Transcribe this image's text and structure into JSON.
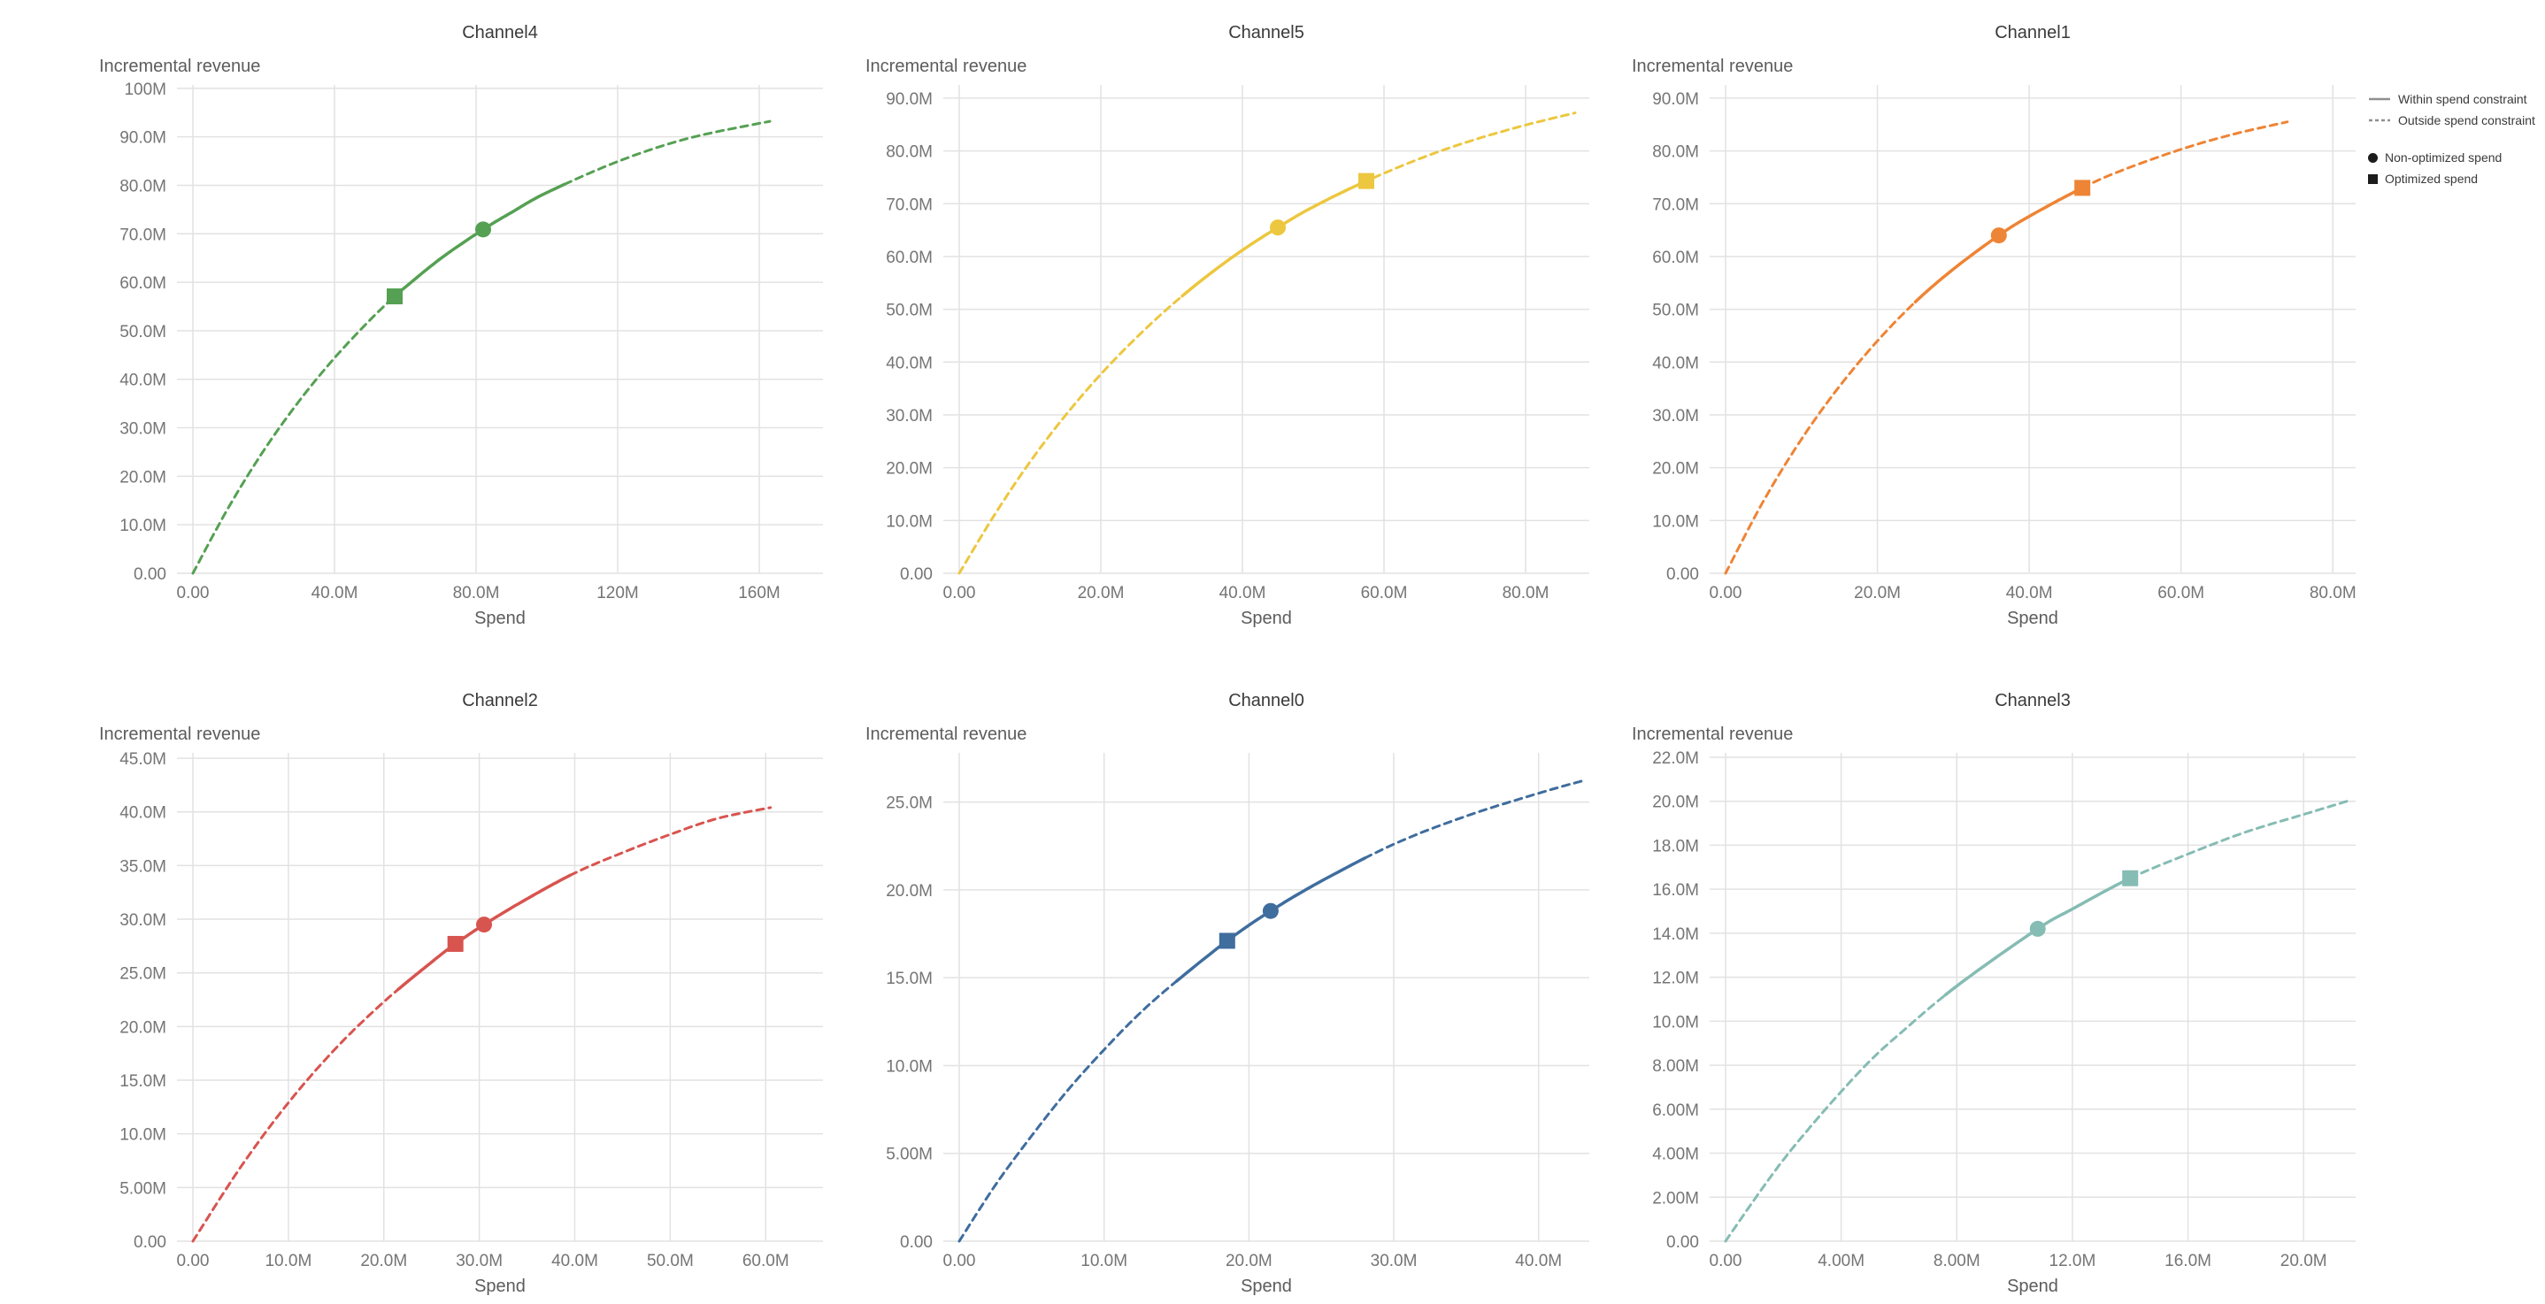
{
  "legend": {
    "items": [
      {
        "label": "Within spend constraint",
        "symbol": "solid-line"
      },
      {
        "label": "Outside spend constraint",
        "symbol": "dashed-line"
      },
      {
        "label": "Non-optimized spend",
        "symbol": "circle"
      },
      {
        "label": "Optimized spend",
        "symbol": "square"
      }
    ],
    "line_color": "#8f8f8f",
    "marker_color": "#1c1c1c"
  },
  "chart_data": [
    {
      "type": "line",
      "title": "Channel4",
      "xlabel": "Spend",
      "ylabel": "Incremental revenue",
      "color": "#55a053",
      "values_in": "millions",
      "xlim": [
        0,
        178
      ],
      "ylim": [
        0,
        100.7
      ],
      "x_ticks": {
        "values": [
          0,
          40,
          80,
          120,
          160
        ],
        "labels": [
          "0.00",
          "40.0M",
          "80.0M",
          "120M",
          "160M"
        ]
      },
      "y_ticks": {
        "values": [
          0,
          10,
          20,
          30,
          40,
          50,
          60,
          70,
          80,
          90,
          100
        ],
        "labels": [
          "0.00",
          "10.0M",
          "20.0M",
          "30.0M",
          "40.0M",
          "50.0M",
          "60.0M",
          "70.0M",
          "80.0M",
          "90.0M",
          "100M"
        ]
      },
      "curve_points": [
        [
          0,
          0
        ],
        [
          10,
          13.5
        ],
        [
          20,
          25.3
        ],
        [
          30,
          35.5
        ],
        [
          40,
          44.4
        ],
        [
          50,
          52.2
        ],
        [
          57,
          57.1
        ],
        [
          60,
          59.0
        ],
        [
          70,
          64.9
        ],
        [
          82,
          70.9
        ],
        [
          90,
          74.4
        ],
        [
          100,
          78.5
        ],
        [
          120,
          84.9
        ],
        [
          140,
          89.7
        ],
        [
          163,
          93.2
        ]
      ],
      "solid_range": [
        55,
        105
      ],
      "markers": {
        "non_optimized_spend": [
          82,
          70.9
        ],
        "optimized_spend": [
          57,
          57.1
        ]
      }
    },
    {
      "type": "line",
      "title": "Channel5",
      "xlabel": "Spend",
      "ylabel": "Incremental revenue",
      "color": "#ecc73f",
      "values_in": "millions",
      "xlim": [
        0,
        89
      ],
      "ylim": [
        0,
        92.5
      ],
      "x_ticks": {
        "values": [
          0,
          20,
          40,
          60,
          80
        ],
        "labels": [
          "0.00",
          "20.0M",
          "40.0M",
          "60.0M",
          "80.0M"
        ]
      },
      "y_ticks": {
        "values": [
          0,
          10,
          20,
          30,
          40,
          50,
          60,
          70,
          80,
          90
        ],
        "labels": [
          "0.00",
          "10.0M",
          "20.0M",
          "30.0M",
          "40.0M",
          "50.0M",
          "60.0M",
          "70.0M",
          "80.0M",
          "90.0M"
        ]
      },
      "curve_points": [
        [
          0,
          0
        ],
        [
          5,
          11.1
        ],
        [
          10,
          21.1
        ],
        [
          15,
          29.9
        ],
        [
          20,
          37.7
        ],
        [
          25,
          44.6
        ],
        [
          30,
          50.8
        ],
        [
          35,
          56.3
        ],
        [
          40,
          61.2
        ],
        [
          45,
          65.5
        ],
        [
          50,
          69.4
        ],
        [
          57.5,
          74.3
        ],
        [
          65,
          78.5
        ],
        [
          72,
          81.8
        ],
        [
          80,
          84.9
        ],
        [
          87,
          87.2
        ]
      ],
      "solid_range": [
        31.5,
        58.5
      ],
      "markers": {
        "non_optimized_spend": [
          45,
          65.5
        ],
        "optimized_spend": [
          57.5,
          74.3
        ]
      }
    },
    {
      "type": "line",
      "title": "Channel1",
      "xlabel": "Spend",
      "ylabel": "Incremental revenue",
      "color": "#ee8435",
      "values_in": "millions",
      "xlim": [
        0,
        83
      ],
      "ylim": [
        0,
        92.5
      ],
      "x_ticks": {
        "values": [
          0,
          20,
          40,
          60,
          80
        ],
        "labels": [
          "0.00",
          "20.0M",
          "40.0M",
          "60.0M",
          "80.0M"
        ]
      },
      "y_ticks": {
        "values": [
          0,
          10,
          20,
          30,
          40,
          50,
          60,
          70,
          80,
          90
        ],
        "labels": [
          "0.00",
          "10.0M",
          "20.0M",
          "30.0M",
          "40.0M",
          "50.0M",
          "60.0M",
          "70.0M",
          "80.0M",
          "90.0M"
        ]
      },
      "curve_points": [
        [
          0,
          0
        ],
        [
          5,
          13.7
        ],
        [
          10,
          25.4
        ],
        [
          15,
          35.4
        ],
        [
          20,
          44.0
        ],
        [
          25,
          51.4
        ],
        [
          30,
          57.6
        ],
        [
          36,
          64.0
        ],
        [
          40,
          67.6
        ],
        [
          47,
          73.0
        ],
        [
          52,
          76.2
        ],
        [
          60,
          80.3
        ],
        [
          67,
          83.2
        ],
        [
          74,
          85.5
        ]
      ],
      "solid_range": [
        25,
        47
      ],
      "markers": {
        "non_optimized_spend": [
          36,
          64.0
        ],
        "optimized_spend": [
          47,
          73.0
        ]
      }
    },
    {
      "type": "line",
      "title": "Channel2",
      "xlabel": "Spend",
      "ylabel": "Incremental revenue",
      "color": "#d8544f",
      "values_in": "millions",
      "xlim": [
        0,
        66
      ],
      "ylim": [
        0,
        45.5
      ],
      "x_ticks": {
        "values": [
          0,
          10,
          20,
          30,
          40,
          50,
          60
        ],
        "labels": [
          "0.00",
          "10.0M",
          "20.0M",
          "30.0M",
          "40.0M",
          "50.0M",
          "60.0M"
        ]
      },
      "y_ticks": {
        "values": [
          0,
          5,
          10,
          15,
          20,
          25,
          30,
          35,
          40,
          45
        ],
        "labels": [
          "0.00",
          "5.00M",
          "10.0M",
          "15.0M",
          "20.0M",
          "25.0M",
          "30.0M",
          "35.0M",
          "40.0M",
          "45.0M"
        ]
      },
      "curve_points": [
        [
          0,
          0
        ],
        [
          5,
          6.9
        ],
        [
          10,
          12.9
        ],
        [
          15,
          18.0
        ],
        [
          20,
          22.3
        ],
        [
          25,
          26.0
        ],
        [
          27.5,
          27.7
        ],
        [
          30.5,
          29.5
        ],
        [
          35,
          31.9
        ],
        [
          40,
          34.3
        ],
        [
          45,
          36.2
        ],
        [
          50,
          37.9
        ],
        [
          55,
          39.4
        ],
        [
          60.5,
          40.4
        ]
      ],
      "solid_range": [
        21.5,
        39.5
      ],
      "markers": {
        "non_optimized_spend": [
          30.5,
          29.5
        ],
        "optimized_spend": [
          27.5,
          27.7
        ]
      }
    },
    {
      "type": "line",
      "title": "Channel0",
      "xlabel": "Spend",
      "ylabel": "Incremental revenue",
      "color": "#3f6d9e",
      "values_in": "millions",
      "xlim": [
        0,
        43.5
      ],
      "ylim": [
        0,
        27.8
      ],
      "x_ticks": {
        "values": [
          0,
          10,
          20,
          30,
          40
        ],
        "labels": [
          "0.00",
          "10.0M",
          "20.0M",
          "30.0M",
          "40.0M"
        ]
      },
      "y_ticks": {
        "values": [
          0,
          5,
          10,
          15,
          20,
          25
        ],
        "labels": [
          "0.00",
          "5.00M",
          "10.0M",
          "15.0M",
          "20.0M",
          "25.0M"
        ]
      },
      "curve_points": [
        [
          0,
          0
        ],
        [
          2.5,
          3.2
        ],
        [
          5,
          6.0
        ],
        [
          7.5,
          8.6
        ],
        [
          10,
          10.9
        ],
        [
          12.5,
          13.0
        ],
        [
          15,
          14.8
        ],
        [
          18.5,
          17.1
        ],
        [
          21.5,
          18.8
        ],
        [
          25,
          20.5
        ],
        [
          30,
          22.6
        ],
        [
          35,
          24.2
        ],
        [
          40,
          25.5
        ],
        [
          43,
          26.2
        ]
      ],
      "solid_range": [
        15,
        28
      ],
      "markers": {
        "non_optimized_spend": [
          21.5,
          18.8
        ],
        "optimized_spend": [
          18.5,
          17.1
        ]
      }
    },
    {
      "type": "line",
      "title": "Channel3",
      "xlabel": "Spend",
      "ylabel": "Incremental revenue",
      "color": "#85bcb4",
      "values_in": "millions",
      "xlim": [
        0,
        21.8
      ],
      "ylim": [
        0,
        22.2
      ],
      "x_ticks": {
        "values": [
          0,
          4,
          8,
          12,
          16,
          20
        ],
        "labels": [
          "0.00",
          "4.00M",
          "8.00M",
          "12.0M",
          "16.0M",
          "20.0M"
        ]
      },
      "y_ticks": {
        "values": [
          0,
          2,
          4,
          6,
          8,
          10,
          12,
          14,
          16,
          18,
          20,
          22
        ],
        "labels": [
          "0.00",
          "2.00M",
          "4.00M",
          "6.00M",
          "8.00M",
          "10.0M",
          "12.0M",
          "14.0M",
          "16.0M",
          "18.0M",
          "20.0M",
          "22.0M"
        ]
      },
      "curve_points": [
        [
          0,
          0
        ],
        [
          1,
          1.9
        ],
        [
          2,
          3.7
        ],
        [
          3,
          5.3
        ],
        [
          4,
          6.8
        ],
        [
          5,
          8.2
        ],
        [
          6,
          9.4
        ],
        [
          8,
          11.6
        ],
        [
          10.8,
          14.2
        ],
        [
          12,
          15.1
        ],
        [
          14,
          16.5
        ],
        [
          16,
          17.6
        ],
        [
          18,
          18.6
        ],
        [
          20,
          19.4
        ],
        [
          21.5,
          20.0
        ]
      ],
      "solid_range": [
        7.6,
        14
      ],
      "markers": {
        "non_optimized_spend": [
          10.8,
          14.2
        ],
        "optimized_spend": [
          14,
          16.5
        ]
      }
    }
  ]
}
